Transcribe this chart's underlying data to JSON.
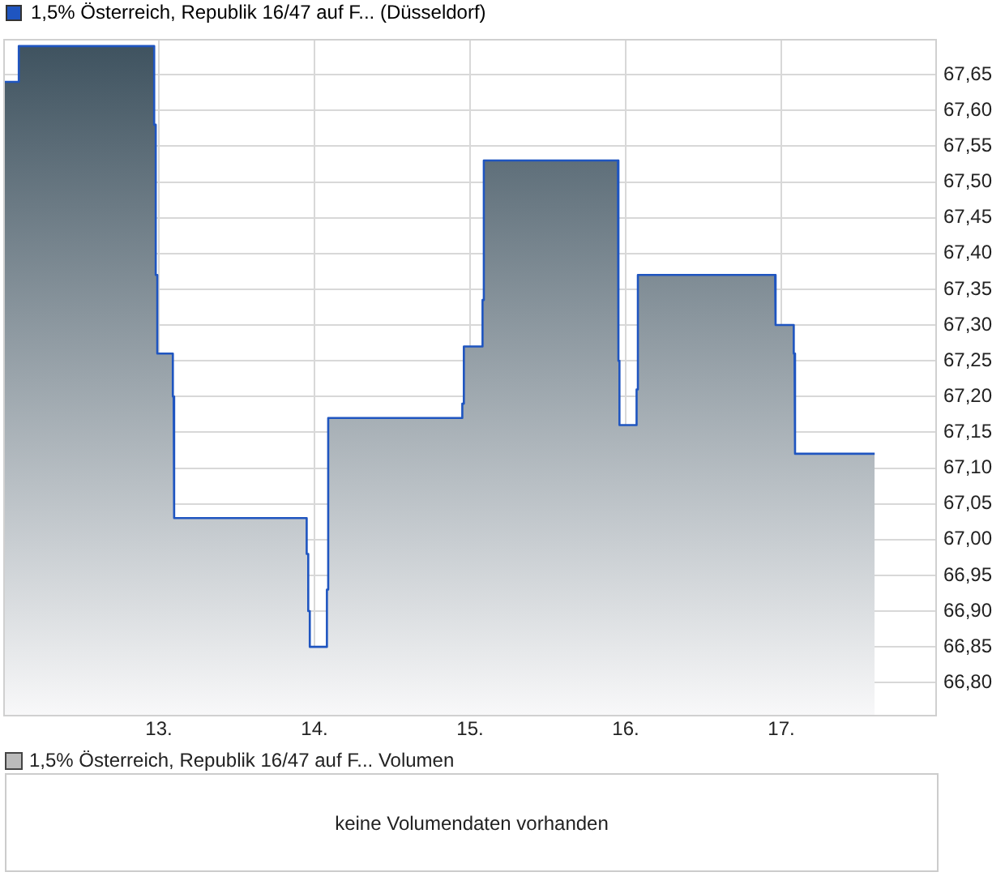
{
  "chart_data": [
    {
      "type": "area",
      "legend": "top left",
      "grid": true,
      "xlim": [
        12,
        18
      ],
      "xticks": [
        {
          "value": 13,
          "label": "13."
        },
        {
          "value": 14,
          "label": "14."
        },
        {
          "value": 15,
          "label": "15."
        },
        {
          "value": 16,
          "label": "16."
        },
        {
          "value": 17,
          "label": "17."
        }
      ],
      "ylim": [
        66.755,
        67.7
      ],
      "yticks": [
        {
          "value": 66.8,
          "label": "66,80"
        },
        {
          "value": 66.85,
          "label": "66,85"
        },
        {
          "value": 66.9,
          "label": "66,90"
        },
        {
          "value": 66.95,
          "label": "66,95"
        },
        {
          "value": 67,
          "label": "67,00"
        },
        {
          "value": 67.05,
          "label": "67,05"
        },
        {
          "value": 67.1,
          "label": "67,10"
        },
        {
          "value": 67.15,
          "label": "67,15"
        },
        {
          "value": 67.2,
          "label": "67,20"
        },
        {
          "value": 67.25,
          "label": "67,25"
        },
        {
          "value": 67.3,
          "label": "67,30"
        },
        {
          "value": 67.35,
          "label": "67,35"
        },
        {
          "value": 67.4,
          "label": "67,40"
        },
        {
          "value": 67.45,
          "label": "67,45"
        },
        {
          "value": 67.5,
          "label": "67,50"
        },
        {
          "value": 67.55,
          "label": "67,55"
        },
        {
          "value": 67.6,
          "label": "67,60"
        },
        {
          "value": 67.65,
          "label": "67,65"
        }
      ],
      "x": [
        12,
        12.1,
        12.1,
        12.97,
        12.97,
        12.98,
        12.98,
        12.99,
        12.99,
        13.09,
        13.09,
        13.095,
        13.095,
        13.1,
        13.1,
        13.95,
        13.95,
        13.96,
        13.96,
        13.97,
        13.97,
        14.08,
        14.08,
        14.085,
        14.085,
        14.09,
        14.09,
        14.95,
        14.95,
        14.96,
        14.96,
        15.08,
        15.08,
        15.085,
        15.085,
        15.09,
        15.09,
        15.95,
        15.95,
        15.955,
        15.955,
        15.96,
        15.96,
        16.07,
        16.07,
        16.075,
        16.075,
        16.08,
        16.08,
        16.96,
        16.96,
        16.965,
        16.965,
        17.08,
        17.08,
        17.085,
        17.085,
        17.09,
        17.09,
        17.6
      ],
      "series": [
        {
          "name": "1,5% Österreich, Republik 16/47 auf F... (Düsseldorf)",
          "color": "#1f55c0",
          "values": [
            67.64,
            67.64,
            67.69,
            67.69,
            67.58,
            67.58,
            67.37,
            67.37,
            67.26,
            67.26,
            67.2,
            67.2,
            67.09,
            67.09,
            67.03,
            67.03,
            66.98,
            66.98,
            66.9,
            66.9,
            66.85,
            66.85,
            66.93,
            66.93,
            67.09,
            67.09,
            67.17,
            67.17,
            67.19,
            67.19,
            67.27,
            67.27,
            67.335,
            67.335,
            67.46,
            67.46,
            67.53,
            67.53,
            67.44,
            67.44,
            67.25,
            67.25,
            67.16,
            67.16,
            67.21,
            67.21,
            67.32,
            67.32,
            67.37,
            67.37,
            67.35,
            67.35,
            67.3,
            67.3,
            67.26,
            67.26,
            67.16,
            67.16,
            67.12,
            67.12
          ]
        }
      ]
    },
    {
      "type": "other",
      "title": "1,5% Österreich, Republik 16/47 auf F... Volumen",
      "annotations": [
        "keine Volumendaten vorhanden"
      ]
    }
  ]
}
